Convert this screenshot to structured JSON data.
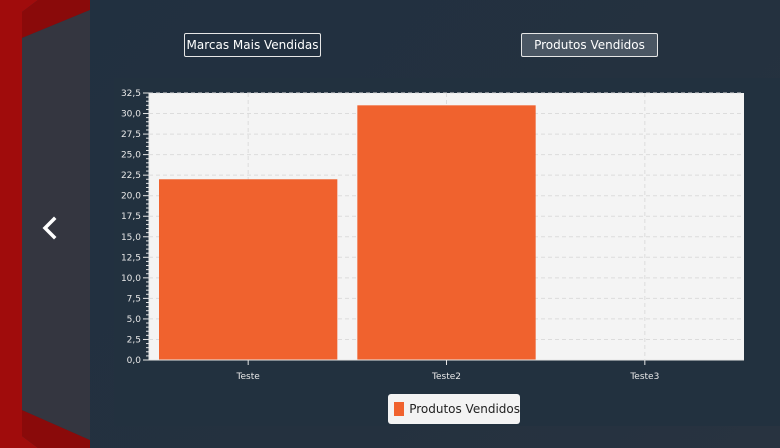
{
  "nav": {
    "back_icon": "chevron-left-icon"
  },
  "buttons": {
    "brands_label": "Marcas Mais Vendidas",
    "products_label": "Produtos Vendidos"
  },
  "colors": {
    "bar": "#f0622e",
    "accent_red": "#a30d0d",
    "panel": "#22313f"
  },
  "chart_data": {
    "type": "bar",
    "categories": [
      "Teste",
      "Teste2",
      "Teste3"
    ],
    "series": [
      {
        "name": "Produtos Vendidos",
        "values": [
          22,
          31,
          0
        ]
      }
    ],
    "ylim": [
      0,
      32.5
    ],
    "yticks": [
      "0,0",
      "2,5",
      "5,0",
      "7,5",
      "10,0",
      "12,5",
      "15,0",
      "17,5",
      "20,0",
      "22,5",
      "25,0",
      "27,5",
      "30,0",
      "32,5"
    ],
    "grid": true,
    "legend_position": "bottom-center"
  }
}
